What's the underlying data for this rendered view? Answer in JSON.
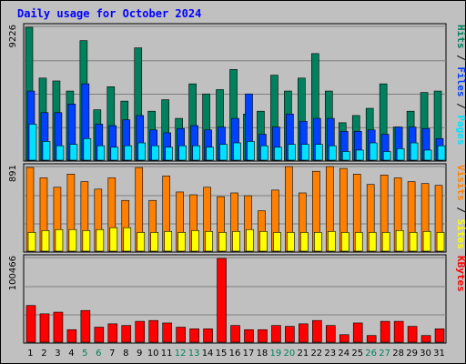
{
  "colors": {
    "background": "#c0c0c0",
    "panel": "#c0c0c0",
    "title": "#0000ff",
    "hits": "#00805c",
    "files": "#0040ff",
    "pages": "#00e0ff",
    "visits": "#ff8000",
    "sites": "#ffff00",
    "kbytes": "#ff0000",
    "weekend_label": "#00805c",
    "weekday_label": "#000000"
  },
  "chart_data": {
    "type": "bar",
    "title": "Daily usage for October 2024",
    "days": [
      "1",
      "2",
      "3",
      "4",
      "5",
      "6",
      "7",
      "8",
      "9",
      "10",
      "11",
      "12",
      "13",
      "14",
      "15",
      "16",
      "17",
      "18",
      "19",
      "20",
      "21",
      "22",
      "23",
      "24",
      "25",
      "26",
      "27",
      "28",
      "29",
      "30",
      "31"
    ],
    "weekend_days": [
      "5",
      "6",
      "12",
      "13",
      "19",
      "20",
      "26",
      "27"
    ],
    "panels": [
      {
        "ymax_label": "9226",
        "ymax": 9226,
        "legend": [
          "Pages",
          "Files",
          "Hits"
        ],
        "series": [
          {
            "name": "Hits",
            "values": [
              9226,
              5700,
              5500,
              4800,
              8300,
              3500,
              5100,
              4100,
              7800,
              3400,
              4200,
              2900,
              5300,
              4600,
              4900,
              6300,
              3200,
              3400,
              5900,
              4800,
              5700,
              7400,
              4800,
              2600,
              3100,
              3600,
              5300,
              2300,
              3400,
              4700,
              4800
            ]
          },
          {
            "name": "Files",
            "values": [
              4800,
              3300,
              3300,
              3900,
              5300,
              2500,
              2400,
              2800,
              3100,
              2100,
              1900,
              2200,
              2400,
              2100,
              2300,
              2900,
              4600,
              1800,
              2300,
              3200,
              2700,
              2900,
              2900,
              2000,
              2000,
              2100,
              1800,
              2300,
              2300,
              2200,
              1500
            ]
          },
          {
            "name": "Pages",
            "values": [
              2500,
              1300,
              1000,
              1100,
              1500,
              1000,
              900,
              1000,
              1200,
              1000,
              900,
              1000,
              1000,
              900,
              1100,
              1200,
              1300,
              1000,
              900,
              1100,
              1100,
              1100,
              1000,
              600,
              700,
              1200,
              600,
              800,
              1200,
              700,
              1000
            ]
          }
        ]
      },
      {
        "ymax_label": "891",
        "ymax": 891,
        "legend": [
          "Sites",
          "Visits"
        ],
        "series": [
          {
            "name": "Visits",
            "values": [
              891,
              780,
              680,
              820,
              740,
              660,
              780,
              540,
              890,
              540,
              800,
              630,
              600,
              680,
              580,
              620,
              590,
              430,
              650,
              900,
              620,
              850,
              900,
              880,
              820,
              710,
              810,
              780,
              740,
              720,
              700
            ]
          },
          {
            "name": "Sites",
            "values": [
              200,
              220,
              230,
              230,
              220,
              230,
              250,
              250,
              200,
              200,
              210,
              200,
              220,
              210,
              200,
              210,
              230,
              210,
              200,
              200,
              200,
              200,
              210,
              200,
              200,
              200,
              200,
              220,
              200,
              210,
              200
            ]
          }
        ]
      },
      {
        "ymax_label": "100466",
        "ymax": 100466,
        "legend": [
          "KBytes"
        ],
        "series": [
          {
            "name": "KBytes",
            "values": [
              44000,
              34000,
              36000,
              15000,
              38000,
              18000,
              22000,
              20000,
              25000,
              26000,
              23000,
              18000,
              16000,
              16000,
              100466,
              20000,
              15000,
              15000,
              20000,
              19000,
              22000,
              26000,
              20000,
              9000,
              23000,
              8000,
              25000,
              25000,
              19000,
              8000,
              16000
            ]
          }
        ]
      }
    ]
  }
}
